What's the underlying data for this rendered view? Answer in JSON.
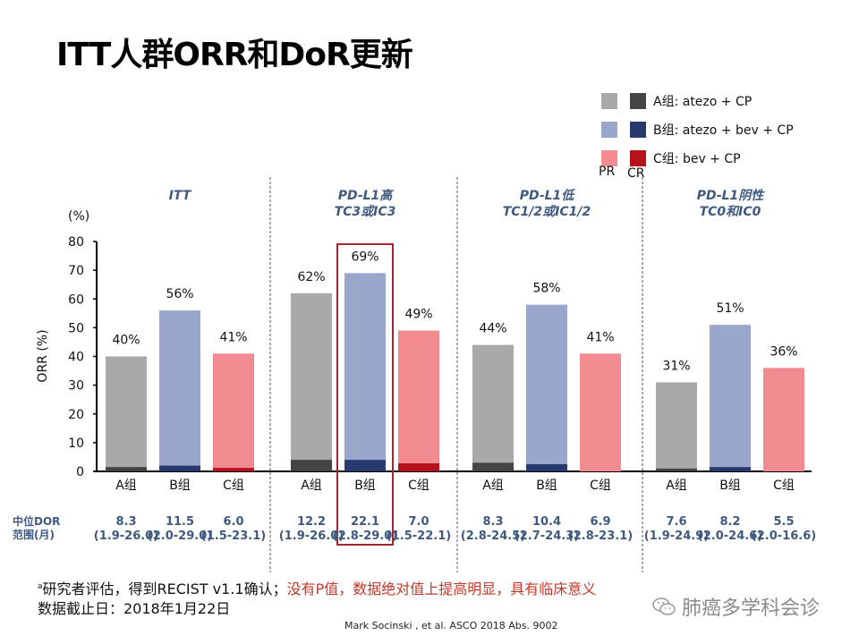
{
  "title": "ITT人群ORR和DoR更新",
  "legend": {
    "items": [
      {
        "label": "A组: atezo + CP",
        "pr_color": "#a9a9a9",
        "cr_color": "#444444"
      },
      {
        "label": "B组: atezo + bev + CP",
        "pr_color": "#9aa6cc",
        "cr_color": "#263a70"
      },
      {
        "label": "C组: bev + CP",
        "pr_color": "#f28b8f",
        "cr_color": "#b5121b"
      }
    ],
    "pr_label": "PR",
    "cr_label": "CR"
  },
  "chart_data": {
    "type": "bar",
    "stacked": true,
    "ylabel": "ORR (%)",
    "yunit": "(%)",
    "ylim": [
      0,
      80
    ],
    "yticks": [
      0,
      10,
      20,
      30,
      40,
      50,
      60,
      70,
      80
    ],
    "categories": [
      "A组",
      "B组",
      "C组"
    ],
    "highlight": {
      "group": 1,
      "category": 1,
      "color": "#a0282d"
    },
    "groups": [
      {
        "title": [
          "ITT"
        ],
        "orr": [
          40,
          56,
          41
        ],
        "labels": [
          "40%",
          "56%",
          "41%"
        ],
        "cr": [
          1.5,
          2,
          1.2
        ]
      },
      {
        "title": [
          "PD-L1高",
          "TC3或IC3"
        ],
        "orr": [
          62,
          69,
          49
        ],
        "labels": [
          "62%",
          "69%",
          "49%"
        ],
        "cr": [
          4,
          4,
          2.8
        ]
      },
      {
        "title": [
          "PD-L1低",
          "TC1/2或IC1/2"
        ],
        "orr": [
          44,
          58,
          41
        ],
        "labels": [
          "44%",
          "58%",
          "41%"
        ],
        "cr": [
          3,
          2.5,
          0
        ]
      },
      {
        "title": [
          "PD-L1阴性",
          "TC0和IC0"
        ],
        "orr": [
          31,
          51,
          36
        ],
        "labels": [
          "31%",
          "51%",
          "36%"
        ],
        "cr": [
          1,
          1.5,
          0
        ]
      }
    ]
  },
  "dor": {
    "header": [
      "中位DOR",
      "范围(月)"
    ],
    "values": [
      {
        "median": "8.3",
        "range": "(1.9-26.0)"
      },
      {
        "median": "11.5",
        "range": "(2.0-29.0)"
      },
      {
        "median": "6.0",
        "range": "(1.5-23.1)"
      },
      {
        "median": "12.2",
        "range": "(1.9-26.0)"
      },
      {
        "median": "22.1",
        "range": "(2.8-29.0)"
      },
      {
        "median": "7.0",
        "range": "(1.5-22.1)"
      },
      {
        "median": "8.3",
        "range": "(2.8-24.5)"
      },
      {
        "median": "10.4",
        "range": "(2.7-24.3)"
      },
      {
        "median": "6.9",
        "range": "(2.8-23.1)"
      },
      {
        "median": "7.6",
        "range": "(1.9-24.9)"
      },
      {
        "median": "8.2",
        "range": "(2.0-24.6)"
      },
      {
        "median": "5.5",
        "range": "(2.0-16.6)"
      }
    ]
  },
  "footnote": {
    "sup": "a",
    "text": "研究者评估，得到RECIST v1.1确认；",
    "red_text": "没有P值，数据绝对值上提高明显，具有临床意义",
    "cutoff": "数据截止日：2018年1月22日"
  },
  "citation": "Mark Socinski , et al.  ASCO 2018 Abs. 9002",
  "watermark": {
    "text": "肺癌多学科会诊",
    "icon": "wechat-icon"
  }
}
